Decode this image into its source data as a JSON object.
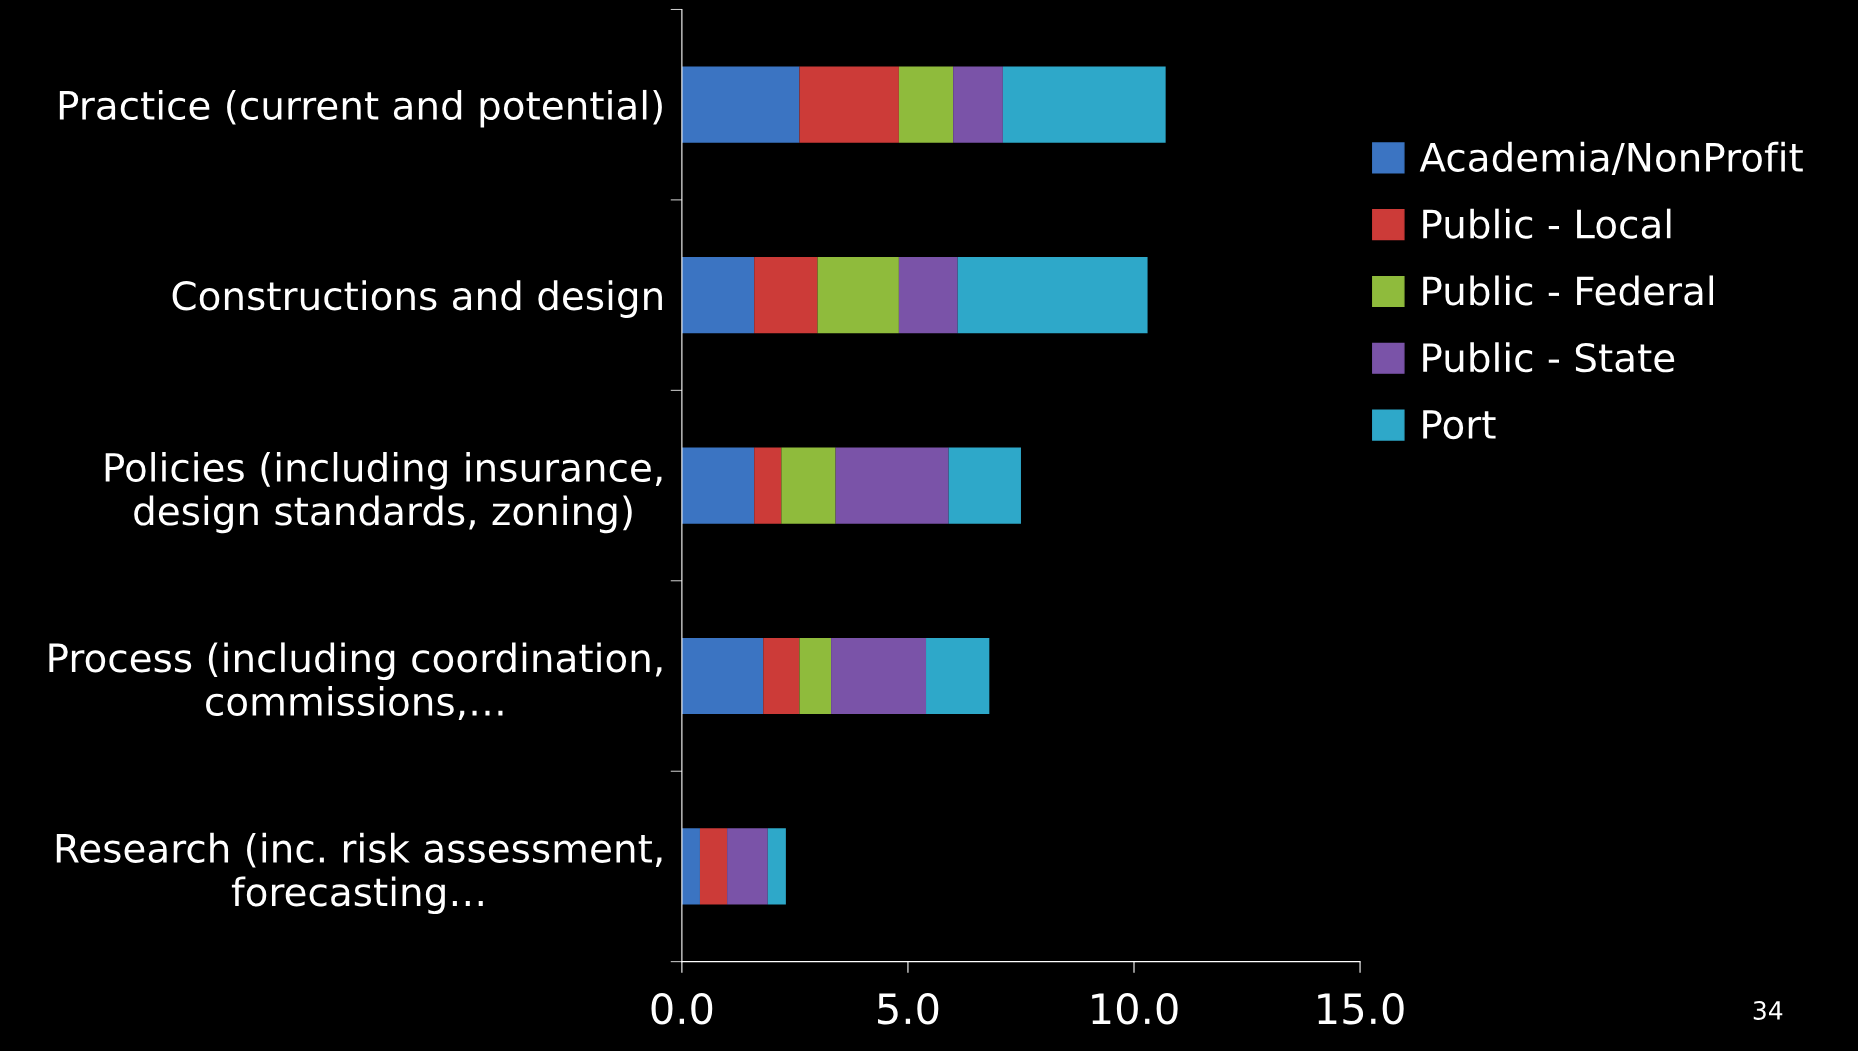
{
  "chart_data": {
    "type": "bar",
    "orientation": "horizontal",
    "stacked": true,
    "categories": [
      "Practice (current and potential)",
      "Constructions and design",
      "Policies (including insurance, design standards, zoning)",
      "Process (including coordination, commissions,…",
      "Research (inc. risk assessment, forecasting…"
    ],
    "series": [
      {
        "name": "Academia/NonProfit",
        "color": "#3b74c2",
        "values": [
          2.6,
          1.6,
          1.6,
          1.8,
          0.4
        ]
      },
      {
        "name": "Public - Local",
        "color": "#cc3b38",
        "values": [
          2.2,
          1.4,
          0.6,
          0.8,
          0.6
        ]
      },
      {
        "name": "Public - Federal",
        "color": "#8fbb3c",
        "values": [
          1.2,
          1.8,
          1.2,
          0.7,
          0
        ]
      },
      {
        "name": "Public - State",
        "color": "#7a53a8",
        "values": [
          1.1,
          1.3,
          2.5,
          2.1,
          0.9
        ]
      },
      {
        "name": "Port",
        "color": "#2ea8c9",
        "values": [
          3.6,
          4.2,
          1.6,
          1.4,
          0.4
        ]
      }
    ],
    "xlim": [
      0,
      15
    ],
    "xticks": [
      {
        "value": 0,
        "label": "0.0"
      },
      {
        "value": 5,
        "label": "5.0"
      },
      {
        "value": 10,
        "label": "10.0"
      },
      {
        "value": 15,
        "label": "15.0"
      }
    ],
    "legend": "right",
    "grid": false,
    "annotations": [
      "34"
    ]
  }
}
